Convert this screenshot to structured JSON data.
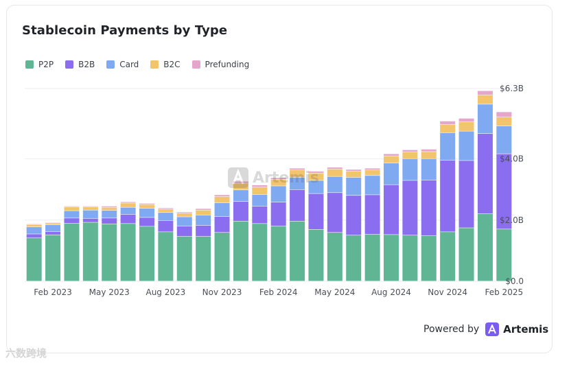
{
  "title": "Stablecoin Payments by Type",
  "powered_by": "Powered by",
  "brand": "Artemis",
  "watermark_text": "六数跨境",
  "center_watermark": "Artemis",
  "colors": {
    "P2P": "#5fb594",
    "B2B": "#8b6ef0",
    "Card": "#7faaf2",
    "B2C": "#f2c46b",
    "Prefunding": "#e6a6cc"
  },
  "chart_data": {
    "type": "bar",
    "stacked": true,
    "title": "Stablecoin Payments by Type",
    "xlabel": "",
    "ylabel": "",
    "ylim": [
      0,
      6.3
    ],
    "unit": "B",
    "y_ticks": [
      {
        "value": 0,
        "label": "$0.0"
      },
      {
        "value": 2.0,
        "label": "$2.0B"
      },
      {
        "value": 4.0,
        "label": "$4.0B"
      },
      {
        "value": 6.3,
        "label": "$6.3B"
      }
    ],
    "x_tick_labels": [
      {
        "index": 1,
        "label": "Feb 2023"
      },
      {
        "index": 4,
        "label": "May 2023"
      },
      {
        "index": 7,
        "label": "Aug 2023"
      },
      {
        "index": 10,
        "label": "Nov 2023"
      },
      {
        "index": 13,
        "label": "Feb 2024"
      },
      {
        "index": 16,
        "label": "May 2024"
      },
      {
        "index": 19,
        "label": "Aug 2024"
      },
      {
        "index": 22,
        "label": "Nov 2024"
      },
      {
        "index": 25,
        "label": "Feb 2025"
      }
    ],
    "categories": [
      "Jan 2023",
      "Feb 2023",
      "Mar 2023",
      "Apr 2023",
      "May 2023",
      "Jun 2023",
      "Jul 2023",
      "Aug 2023",
      "Sep 2023",
      "Oct 2023",
      "Nov 2023",
      "Dec 2023",
      "Jan 2024",
      "Feb 2024",
      "Mar 2024",
      "Apr 2024",
      "May 2024",
      "Jun 2024",
      "Jul 2024",
      "Aug 2024",
      "Sep 2024",
      "Oct 2024",
      "Nov 2024",
      "Dec 2024",
      "Jan 2025",
      "Feb 2025"
    ],
    "series": [
      {
        "name": "P2P",
        "values": [
          1.41,
          1.51,
          1.89,
          1.92,
          1.87,
          1.88,
          1.79,
          1.61,
          1.46,
          1.46,
          1.59,
          1.96,
          1.88,
          1.8,
          1.96,
          1.69,
          1.59,
          1.5,
          1.53,
          1.52,
          1.5,
          1.48,
          1.61,
          1.74,
          2.2,
          1.7
        ]
      },
      {
        "name": "B2B",
        "values": [
          0.13,
          0.11,
          0.17,
          0.13,
          0.19,
          0.3,
          0.29,
          0.37,
          0.34,
          0.36,
          0.52,
          0.64,
          0.57,
          0.78,
          1.03,
          1.17,
          1.3,
          1.3,
          1.29,
          1.63,
          1.79,
          1.82,
          2.34,
          2.2,
          2.62,
          2.46
        ]
      },
      {
        "name": "Card",
        "values": [
          0.23,
          0.22,
          0.24,
          0.27,
          0.25,
          0.23,
          0.3,
          0.26,
          0.3,
          0.34,
          0.45,
          0.38,
          0.38,
          0.53,
          0.4,
          0.43,
          0.53,
          0.59,
          0.63,
          0.71,
          0.71,
          0.7,
          0.9,
          0.96,
          0.96,
          0.91
        ]
      },
      {
        "name": "B2C",
        "values": [
          0.08,
          0.06,
          0.12,
          0.1,
          0.1,
          0.14,
          0.12,
          0.11,
          0.12,
          0.16,
          0.2,
          0.22,
          0.24,
          0.21,
          0.24,
          0.24,
          0.24,
          0.2,
          0.18,
          0.23,
          0.22,
          0.23,
          0.27,
          0.3,
          0.3,
          0.29
        ]
      },
      {
        "name": "Prefunding",
        "values": [
          0.02,
          0.02,
          0.03,
          0.03,
          0.04,
          0.04,
          0.04,
          0.04,
          0.04,
          0.05,
          0.06,
          0.06,
          0.07,
          0.06,
          0.06,
          0.06,
          0.06,
          0.06,
          0.06,
          0.07,
          0.07,
          0.08,
          0.11,
          0.12,
          0.14,
          0.17
        ]
      }
    ]
  }
}
